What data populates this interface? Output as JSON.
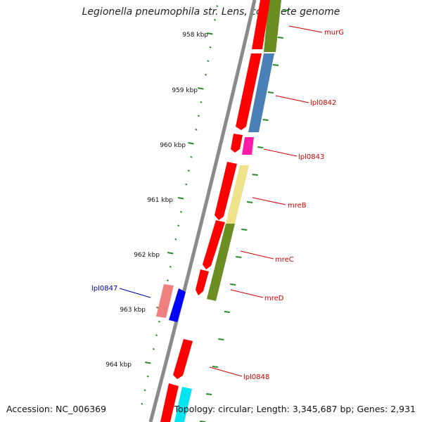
{
  "title": "Legionella pneumophila str. Lens, complete genome",
  "accession": "Accession: NC_006369",
  "summary": "Topology: circular; Length: 3,345,687 bp; Genes: 2,931",
  "colors": {
    "backbone": "#8a8a8a",
    "tick": "#2a8a2a",
    "label_forward": "#cc0000",
    "label_reverse": "#0000aa",
    "gene_red": "#ff0000"
  },
  "scale_ticks": [
    {
      "label": "958 kbp"
    },
    {
      "label": "959 kbp"
    },
    {
      "label": "960 kbp"
    },
    {
      "label": "961 kbp"
    },
    {
      "label": "962 kbp"
    },
    {
      "label": "963 kbp"
    },
    {
      "label": "964 kbp"
    }
  ],
  "genes": [
    {
      "label": "murG",
      "strand": "forward"
    },
    {
      "label": "lpl0842",
      "strand": "forward"
    },
    {
      "label": "lpl0843",
      "strand": "forward"
    },
    {
      "label": "mreB",
      "strand": "forward"
    },
    {
      "label": "mreC",
      "strand": "forward"
    },
    {
      "label": "mreD",
      "strand": "forward"
    },
    {
      "label": "lpl0847",
      "strand": "reverse"
    },
    {
      "label": "lpl0848",
      "strand": "forward"
    }
  ]
}
